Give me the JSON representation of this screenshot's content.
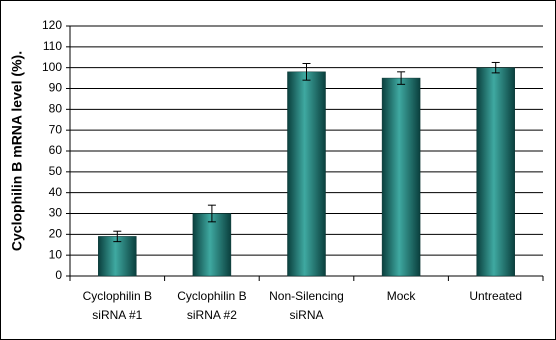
{
  "chart_data": {
    "type": "bar",
    "y_label": "Cyclophilin B mRNA level (%).",
    "categories": [
      [
        "Cyclophilin B",
        "siRNA #1"
      ],
      [
        "Cyclophilin B",
        "siRNA #2"
      ],
      [
        "Non-Silencing",
        "siRNA"
      ],
      [
        "Mock"
      ],
      [
        "Untreated"
      ]
    ],
    "values": [
      19,
      30,
      98,
      95,
      100
    ],
    "errors": [
      2.5,
      4,
      4,
      3,
      2.5
    ],
    "color": "#1f7f7a",
    "ylim": [
      0,
      120
    ],
    "yticks": [
      0,
      10,
      20,
      30,
      40,
      50,
      60,
      70,
      80,
      90,
      100,
      110,
      120
    ],
    "grid": true
  }
}
